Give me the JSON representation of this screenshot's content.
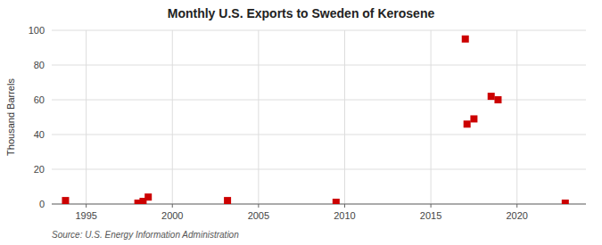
{
  "chart_data": {
    "type": "scatter",
    "title": "Monthly U.S. Exports to Sweden of Kerosene",
    "y_label": "Thousand Barrels",
    "source": "Source: U.S. Energy Information Administration",
    "x": [
      1993.8,
      1998.0,
      1998.3,
      1998.6,
      2003.2,
      2009.5,
      2017.1,
      2017.5,
      2017.0,
      2018.5,
      2018.9,
      2022.8
    ],
    "values": [
      2,
      0.5,
      1.5,
      4,
      2,
      1,
      46,
      49,
      95,
      62,
      60,
      0.5
    ],
    "xlim": [
      1993,
      2024
    ],
    "ylim": [
      0,
      100
    ],
    "xticks": [
      1995,
      2000,
      2005,
      2010,
      2015,
      2020
    ],
    "yticks": [
      0,
      20,
      40,
      60,
      80,
      100
    ],
    "grid": true,
    "color": "#cc0000",
    "marker": "square"
  }
}
